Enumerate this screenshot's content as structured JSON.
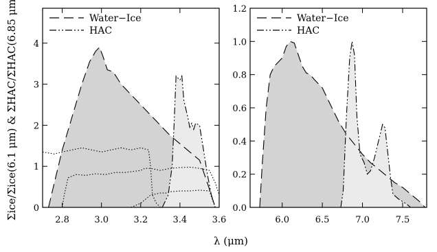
{
  "chart_data": [
    {
      "type": "area",
      "panel": "left",
      "xlim": [
        2.7,
        3.6
      ],
      "ylim": [
        0,
        4.85
      ],
      "xticks": [
        2.8,
        3.0,
        3.2,
        3.4,
        3.6
      ],
      "xtick_labels": [
        "2.8",
        "3.0",
        "3.2",
        "3.4",
        "3.6"
      ],
      "yticks": [
        0,
        1,
        2,
        3,
        4
      ],
      "ytick_labels": [
        "0",
        "1",
        "2",
        "3",
        "4"
      ],
      "ylabel": "Σice/Σice(6.1 μm) & ΣHAC/ΣHAC(6.85 μm)",
      "legend": {
        "placement": "top-left",
        "entries": [
          "Water−Ice",
          "HAC"
        ]
      },
      "series": [
        {
          "name": "Water−Ice",
          "style": "dashed",
          "fill": "#d3d3d3",
          "x": [
            2.73,
            2.76,
            2.8,
            2.85,
            2.9,
            2.94,
            2.97,
            2.99,
            3.01,
            3.03,
            3.06,
            3.1,
            3.15,
            3.2,
            3.25,
            3.3,
            3.35,
            3.4,
            3.45,
            3.5,
            3.55,
            3.58
          ],
          "y": [
            0.0,
            0.6,
            1.4,
            2.2,
            3.0,
            3.55,
            3.8,
            3.9,
            3.65,
            3.35,
            3.3,
            3.0,
            2.75,
            2.5,
            2.25,
            2.0,
            1.75,
            1.55,
            1.35,
            1.15,
            0.45,
            0.0
          ]
        },
        {
          "name": "HAC",
          "style": "dash-dot-dot",
          "fill": "#ebebeb",
          "x": [
            3.31,
            3.34,
            3.36,
            3.37,
            3.38,
            3.4,
            3.41,
            3.42,
            3.44,
            3.45,
            3.46,
            3.47,
            3.48,
            3.5,
            3.52,
            3.54,
            3.56,
            3.58
          ],
          "y": [
            0.0,
            0.3,
            1.0,
            2.0,
            3.2,
            3.1,
            3.2,
            2.6,
            2.2,
            1.95,
            2.05,
            1.9,
            2.05,
            2.0,
            1.4,
            0.8,
            0.3,
            0.0
          ]
        },
        {
          "style": "dotted",
          "x": [
            2.7,
            2.76,
            2.8,
            2.85,
            2.9,
            2.95,
            3.0,
            3.05,
            3.1,
            3.15,
            3.2,
            3.24,
            3.25,
            3.26,
            3.28,
            3.3,
            3.32
          ],
          "y": [
            1.35,
            1.3,
            1.35,
            1.4,
            1.45,
            1.4,
            1.35,
            1.4,
            1.45,
            1.4,
            1.45,
            1.4,
            1.0,
            0.3,
            0.1,
            0.0,
            0.0
          ]
        },
        {
          "style": "dotted",
          "x": [
            2.8,
            2.81,
            2.83,
            2.87,
            2.92,
            2.97,
            3.02,
            3.07,
            3.12,
            3.17,
            3.2,
            3.22,
            3.25,
            3.3,
            3.35,
            3.4,
            3.45,
            3.5,
            3.55,
            3.58,
            3.6
          ],
          "y": [
            0.0,
            0.3,
            0.72,
            0.8,
            0.78,
            0.82,
            0.8,
            0.85,
            0.85,
            0.88,
            0.9,
            0.95,
            0.95,
            0.9,
            0.95,
            0.97,
            0.98,
            0.95,
            0.9,
            0.6,
            0.3
          ]
        },
        {
          "style": "dotted",
          "x": [
            3.15,
            3.2,
            3.25,
            3.3,
            3.33,
            3.35,
            3.4,
            3.45,
            3.5,
            3.55,
            3.58
          ],
          "y": [
            0.0,
            0.1,
            0.3,
            0.35,
            0.35,
            0.38,
            0.4,
            0.4,
            0.42,
            0.4,
            0.0
          ]
        }
      ]
    },
    {
      "type": "area",
      "panel": "right",
      "xlim": [
        5.6,
        7.8
      ],
      "ylim": [
        0,
        1.2
      ],
      "xticks": [
        6.0,
        6.5,
        7.0,
        7.5
      ],
      "xtick_labels": [
        "6.0",
        "6.5",
        "7.0",
        "7.5"
      ],
      "yticks": [
        0.0,
        0.2,
        0.4,
        0.6,
        0.8,
        1.0,
        1.2
      ],
      "ytick_labels": [
        "0.0",
        "0.2",
        "0.4",
        "0.6",
        "0.8",
        "1.0",
        "1.2"
      ],
      "legend": {
        "placement": "top-left",
        "entries": [
          "Water−Ice",
          "HAC"
        ]
      },
      "series": [
        {
          "name": "Water−Ice",
          "style": "dashed",
          "fill": "#d3d3d3",
          "x": [
            5.72,
            5.75,
            5.8,
            5.85,
            5.9,
            6.0,
            6.05,
            6.1,
            6.15,
            6.2,
            6.25,
            6.3,
            6.35,
            6.4,
            6.5,
            6.6,
            6.7,
            6.8,
            6.9,
            7.0,
            7.1,
            7.2,
            7.3,
            7.4,
            7.5,
            7.6,
            7.7,
            7.78
          ],
          "y": [
            0.0,
            0.25,
            0.6,
            0.8,
            0.85,
            0.9,
            0.97,
            1.0,
            0.99,
            0.92,
            0.85,
            0.81,
            0.8,
            0.77,
            0.72,
            0.62,
            0.52,
            0.44,
            0.38,
            0.32,
            0.27,
            0.23,
            0.19,
            0.15,
            0.12,
            0.08,
            0.04,
            0.0
          ]
        },
        {
          "name": "HAC",
          "style": "dash-dot-dot",
          "fill": "#ebebeb",
          "x": [
            6.73,
            6.76,
            6.8,
            6.84,
            6.87,
            6.9,
            6.93,
            6.97,
            7.02,
            7.06,
            7.1,
            7.15,
            7.2,
            7.25,
            7.28,
            7.31,
            7.35,
            7.38,
            7.45,
            7.55,
            7.6
          ],
          "y": [
            0.0,
            0.1,
            0.55,
            0.9,
            1.0,
            0.92,
            0.55,
            0.32,
            0.27,
            0.2,
            0.22,
            0.3,
            0.4,
            0.5,
            0.48,
            0.35,
            0.18,
            0.08,
            0.05,
            0.02,
            0.0
          ]
        }
      ]
    }
  ],
  "xlabel": "λ (μm)"
}
